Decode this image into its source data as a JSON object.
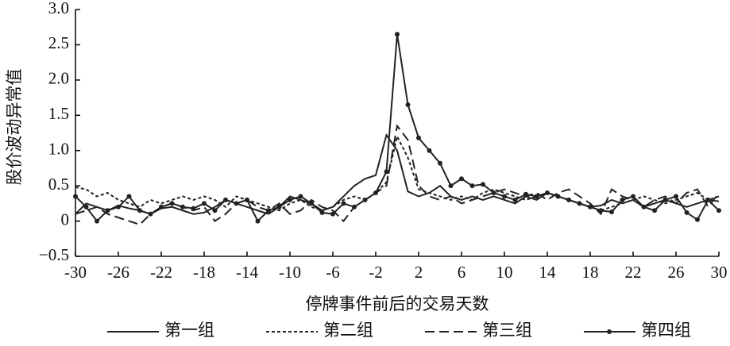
{
  "chart_data": {
    "type": "line",
    "x_label": "停牌事件前后的交易天数",
    "y_label": "股价波动异常值",
    "x": [
      -30,
      -29,
      -28,
      -27,
      -26,
      -25,
      -24,
      -23,
      -22,
      -21,
      -20,
      -19,
      -18,
      -17,
      -16,
      -15,
      -14,
      -13,
      -12,
      -11,
      -10,
      -9,
      -8,
      -7,
      -6,
      -5,
      -4,
      -3,
      -2,
      -1,
      0,
      1,
      2,
      3,
      4,
      5,
      6,
      7,
      8,
      9,
      10,
      11,
      12,
      13,
      14,
      15,
      16,
      17,
      18,
      19,
      20,
      21,
      22,
      23,
      24,
      25,
      26,
      27,
      28,
      29,
      30
    ],
    "series": [
      {
        "name": "第一组",
        "color": "#222222",
        "dash": "solid",
        "marker": false,
        "values": [
          0.1,
          0.25,
          0.2,
          0.15,
          0.22,
          0.18,
          0.15,
          0.1,
          0.18,
          0.2,
          0.15,
          0.1,
          0.12,
          0.2,
          0.3,
          0.25,
          0.2,
          0.15,
          0.1,
          0.2,
          0.35,
          0.3,
          0.25,
          0.15,
          0.2,
          0.35,
          0.5,
          0.6,
          0.65,
          1.22,
          1.0,
          0.42,
          0.35,
          0.4,
          0.5,
          0.35,
          0.3,
          0.35,
          0.3,
          0.35,
          0.3,
          0.25,
          0.35,
          0.3,
          0.4,
          0.35,
          0.3,
          0.25,
          0.2,
          0.22,
          0.3,
          0.25,
          0.3,
          0.2,
          0.25,
          0.3,
          0.25,
          0.2,
          0.25,
          0.3,
          0.28
        ]
      },
      {
        "name": "第二组",
        "color": "#222222",
        "dash": "dotted",
        "marker": false,
        "values": [
          0.48,
          0.45,
          0.35,
          0.4,
          0.3,
          0.25,
          0.2,
          0.3,
          0.25,
          0.3,
          0.35,
          0.3,
          0.35,
          0.3,
          0.2,
          0.35,
          0.3,
          0.25,
          0.2,
          0.15,
          0.25,
          0.3,
          0.2,
          0.15,
          0.2,
          0.3,
          0.35,
          0.3,
          0.4,
          0.55,
          1.2,
          0.9,
          0.45,
          0.4,
          0.35,
          0.3,
          0.35,
          0.3,
          0.4,
          0.45,
          0.4,
          0.35,
          0.3,
          0.35,
          0.4,
          0.35,
          0.3,
          0.25,
          0.2,
          0.15,
          0.2,
          0.25,
          0.3,
          0.35,
          0.3,
          0.25,
          0.3,
          0.35,
          0.4,
          0.3,
          0.35
        ]
      },
      {
        "name": "第三组",
        "color": "#222222",
        "dash": "dashed",
        "marker": false,
        "values": [
          0.1,
          0.15,
          0.2,
          0.1,
          0.05,
          0.0,
          -0.05,
          0.1,
          0.2,
          0.25,
          0.2,
          0.15,
          0.2,
          0.0,
          0.1,
          0.25,
          0.3,
          0.2,
          0.15,
          0.25,
          0.1,
          0.15,
          0.3,
          0.2,
          0.15,
          0.0,
          0.2,
          0.3,
          0.4,
          0.5,
          1.35,
          1.15,
          0.5,
          0.35,
          0.3,
          0.35,
          0.25,
          0.3,
          0.35,
          0.4,
          0.45,
          0.4,
          0.35,
          0.4,
          0.3,
          0.4,
          0.45,
          0.35,
          0.25,
          0.1,
          0.45,
          0.35,
          0.3,
          0.2,
          0.3,
          0.35,
          0.25,
          0.4,
          0.45,
          0.2,
          0.4
        ]
      },
      {
        "name": "第四组",
        "color": "#222222",
        "dash": "solid",
        "marker": true,
        "values": [
          0.35,
          0.2,
          0.0,
          0.15,
          0.2,
          0.35,
          0.15,
          0.1,
          0.2,
          0.25,
          0.2,
          0.18,
          0.25,
          0.15,
          0.3,
          0.25,
          0.3,
          0.0,
          0.15,
          0.2,
          0.3,
          0.35,
          0.25,
          0.12,
          0.1,
          0.25,
          0.2,
          0.3,
          0.4,
          0.7,
          2.65,
          1.65,
          1.18,
          1.0,
          0.82,
          0.5,
          0.6,
          0.5,
          0.52,
          0.4,
          0.35,
          0.3,
          0.38,
          0.35,
          0.4,
          0.35,
          0.3,
          0.25,
          0.2,
          0.15,
          0.13,
          0.3,
          0.35,
          0.2,
          0.15,
          0.3,
          0.35,
          0.12,
          0.02,
          0.3,
          0.15
        ]
      }
    ],
    "xlim": [
      -30,
      30
    ],
    "xticks": [
      -30,
      -26,
      -22,
      -18,
      -14,
      -10,
      -6,
      -2,
      2,
      6,
      10,
      14,
      18,
      22,
      26,
      30
    ],
    "ylim": [
      -0.5,
      3
    ],
    "yticks": [
      {
        "value": -0.5,
        "label": "−0.5"
      },
      0,
      0.5,
      {
        "value": 1,
        "label": "1.0"
      },
      1.5,
      {
        "value": 2,
        "label": "2.0"
      },
      2.5,
      {
        "value": 3,
        "label": "3.0"
      }
    ],
    "legend": "bottom"
  }
}
